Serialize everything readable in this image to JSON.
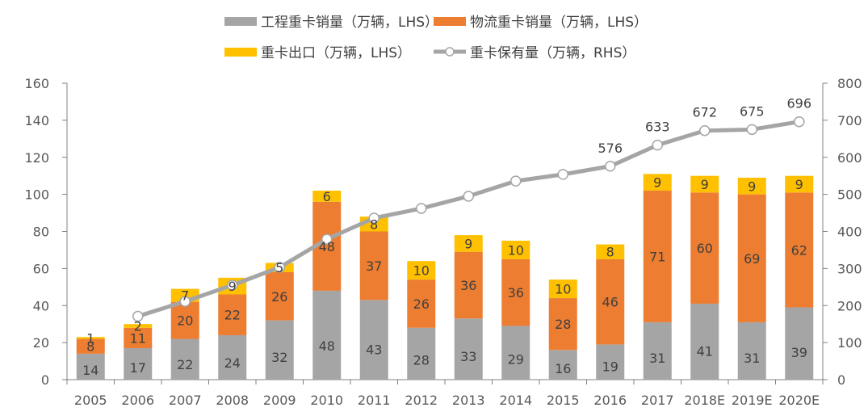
{
  "chart_data": {
    "type": "bar",
    "subtype": "stacked-bar-with-line",
    "title": "",
    "categories": [
      "2005",
      "2006",
      "2007",
      "2008",
      "2009",
      "2010",
      "2011",
      "2012",
      "2013",
      "2014",
      "2015",
      "2016",
      "2017",
      "2018E",
      "2019E",
      "2020E"
    ],
    "series": [
      {
        "name": "工程重卡销量（万辆，LHS）",
        "axis": "left",
        "type": "bar",
        "color": "#A5A5A5",
        "values": [
          14,
          17,
          22,
          24,
          32,
          48,
          43,
          28,
          33,
          29,
          16,
          19,
          31,
          41,
          31,
          39
        ]
      },
      {
        "name": "物流重卡销量（万辆，LHS）",
        "axis": "left",
        "type": "bar",
        "color": "#ED7D31",
        "values": [
          8,
          11,
          20,
          22,
          26,
          48,
          37,
          26,
          36,
          36,
          28,
          46,
          71,
          60,
          69,
          62
        ]
      },
      {
        "name": "重卡出口（万辆，LHS）",
        "axis": "left",
        "type": "bar",
        "color": "#FFC000",
        "values": [
          1,
          2,
          7,
          9,
          5,
          6,
          8,
          10,
          9,
          10,
          10,
          8,
          9,
          9,
          9,
          9
        ]
      },
      {
        "name": "重卡保有量（万辆，RHS）",
        "axis": "right",
        "type": "line",
        "color": "#A5A5A5",
        "values": [
          null,
          171,
          211,
          255,
          303,
          379,
          436,
          462,
          495,
          536,
          554,
          576,
          633,
          672,
          675,
          696
        ],
        "labels": [
          null,
          null,
          null,
          null,
          null,
          null,
          null,
          null,
          null,
          null,
          null,
          "576",
          "633",
          "672",
          "675",
          "696"
        ]
      }
    ],
    "left_axis": {
      "min": 0,
      "max": 160,
      "ticks": [
        "0",
        "20",
        "40",
        "60",
        "80",
        "100",
        "120",
        "140",
        "160"
      ]
    },
    "right_axis": {
      "min": 0,
      "max": 800,
      "ticks": [
        "0",
        "100",
        "200",
        "300",
        "400",
        "500",
        "600",
        "700",
        "800"
      ]
    },
    "xlabel": "",
    "ylabel": "",
    "grid": false,
    "legend_position": "top-center"
  }
}
